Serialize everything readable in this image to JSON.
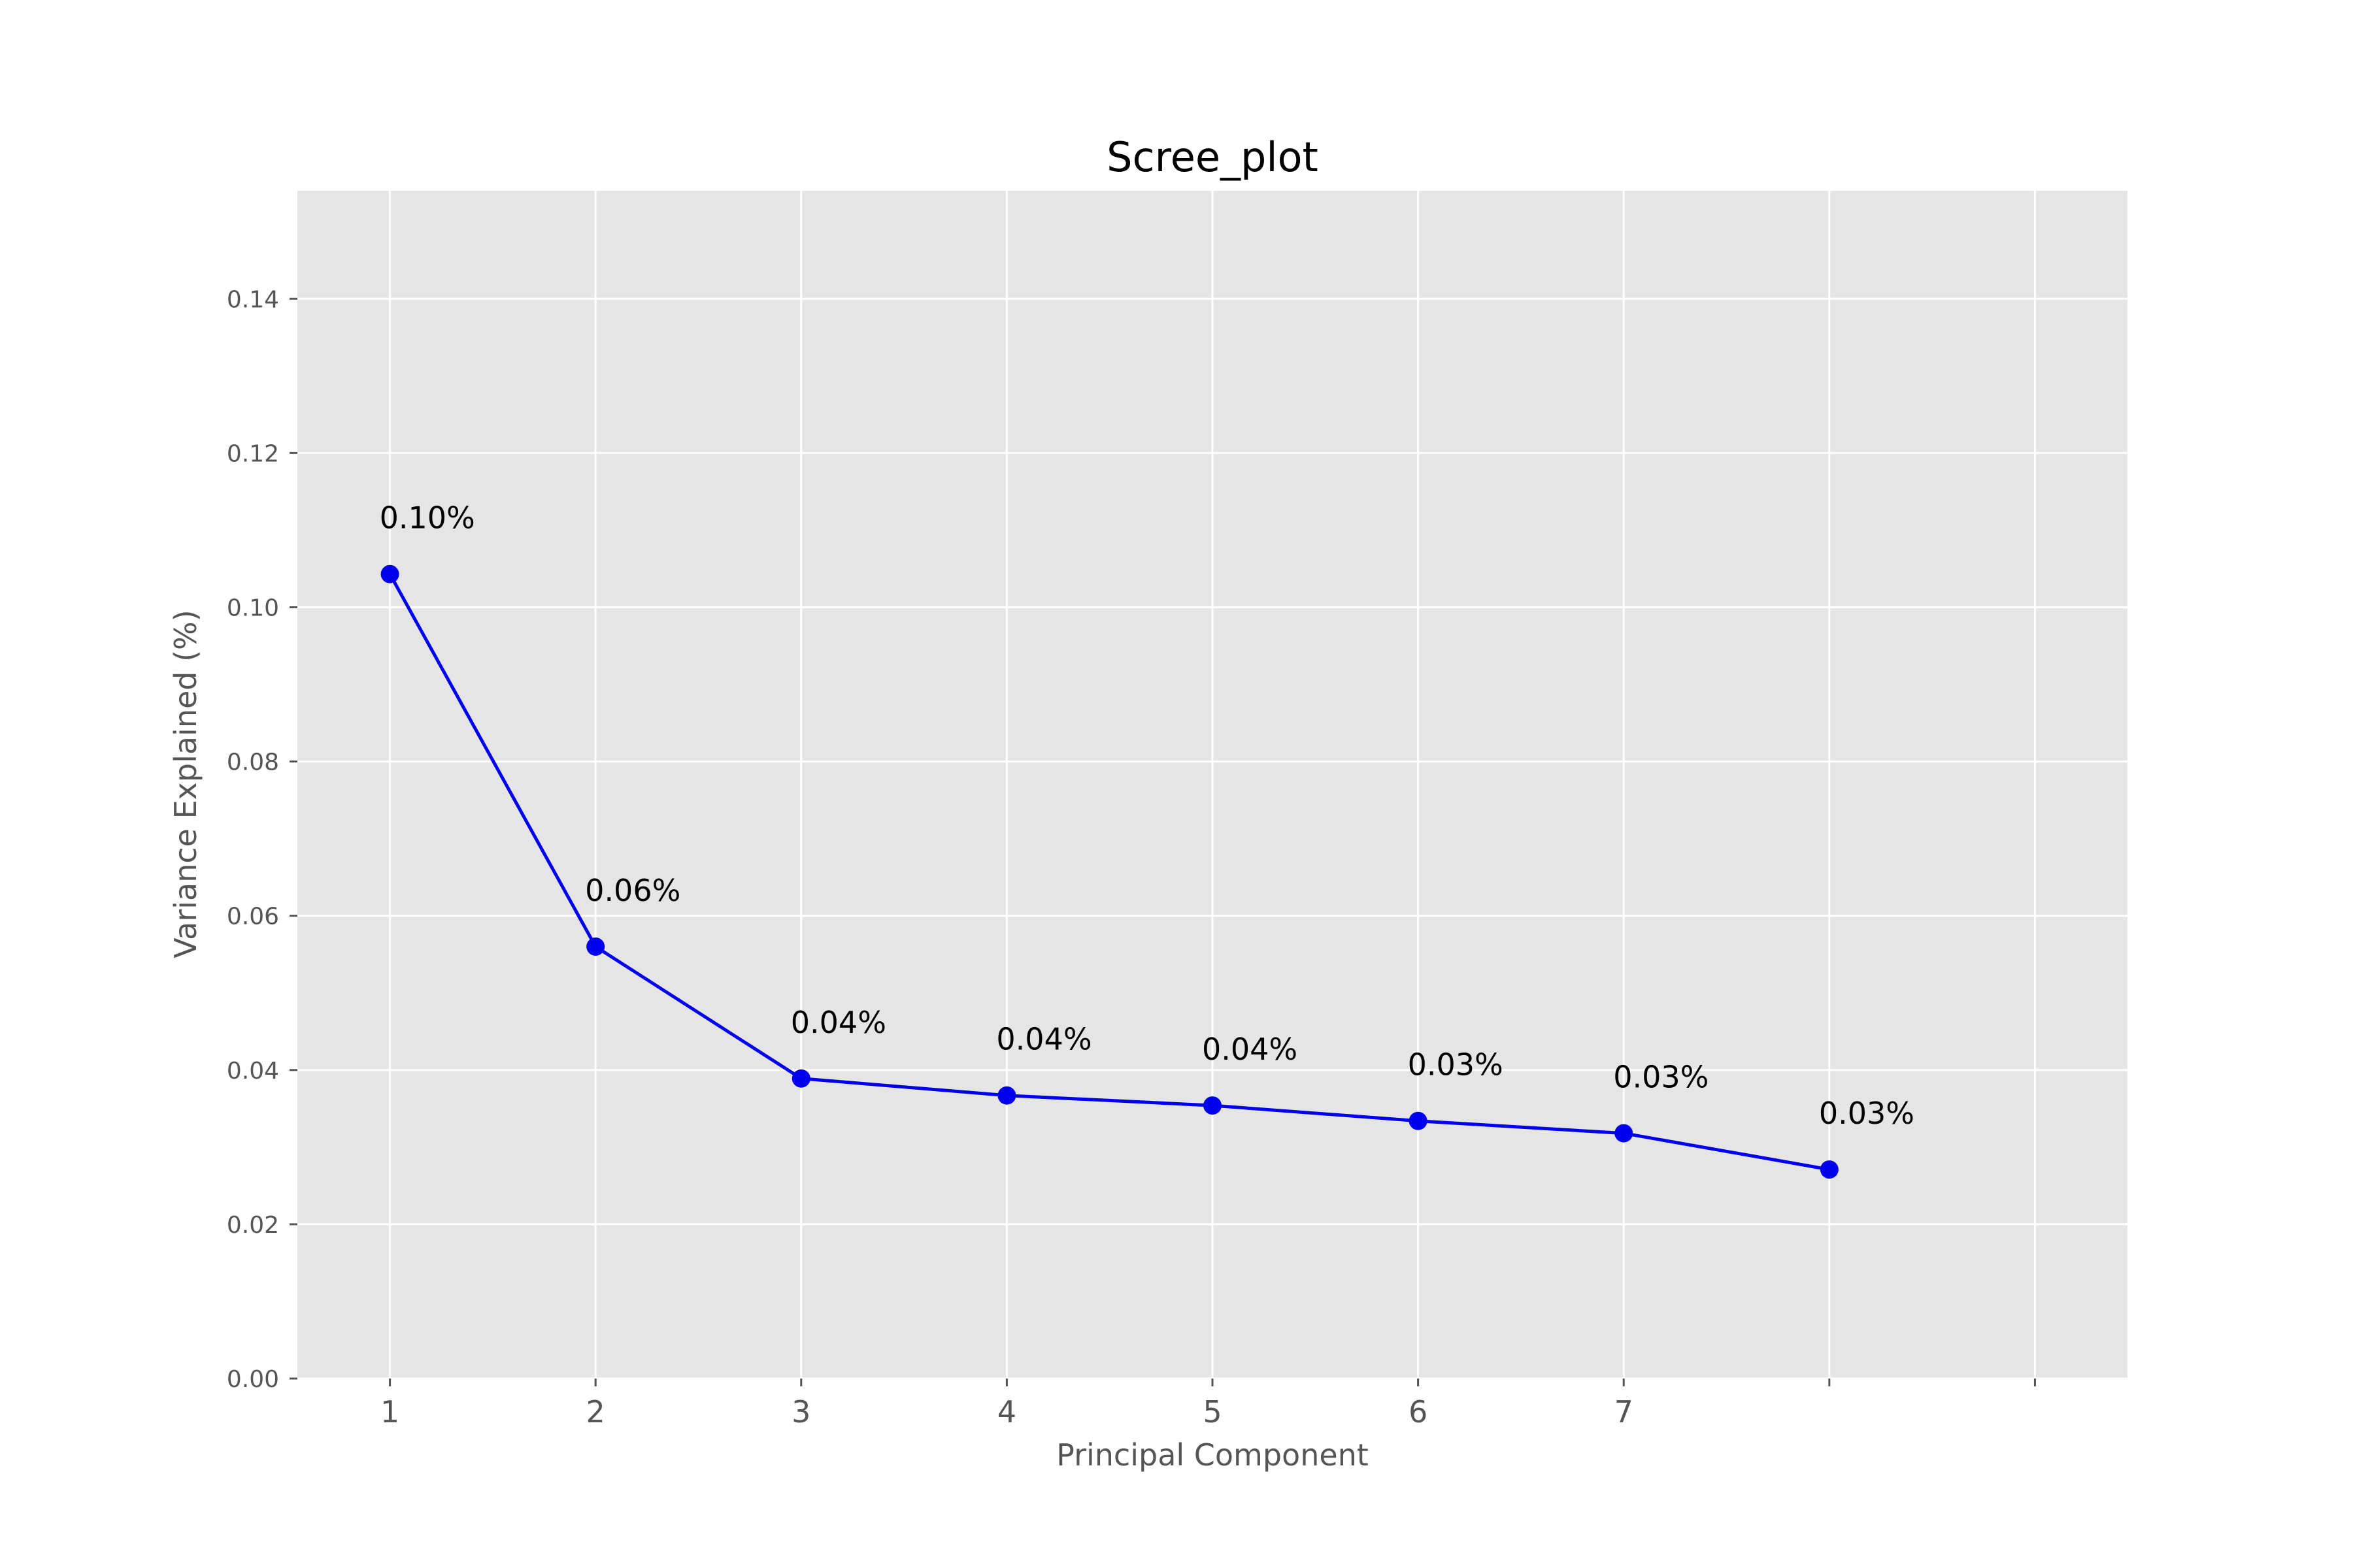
{
  "chart_data": {
    "type": "line",
    "title": "Scree_plot",
    "xlabel": "Principal Component",
    "ylabel": "Variance Explained (%)",
    "x": [
      1,
      2,
      3,
      4,
      5,
      6,
      7,
      8
    ],
    "x_tick_positions": [
      1,
      2,
      3,
      4,
      5,
      6,
      7,
      8,
      9
    ],
    "x_tick_labels": [
      "1",
      "2",
      "3",
      "4",
      "5",
      "6",
      "7",
      "",
      ""
    ],
    "xlim": [
      0.55,
      9.45
    ],
    "y_ticks": [
      0.0,
      0.02,
      0.04,
      0.06,
      0.08,
      0.1,
      0.12,
      0.14
    ],
    "y_tick_labels": [
      "0.00",
      "0.02",
      "0.04",
      "0.06",
      "0.08",
      "0.10",
      "0.12",
      "0.14"
    ],
    "ylim": [
      0,
      0.154
    ],
    "grid": true,
    "series": [
      {
        "values": [
          0.1043,
          0.056,
          0.0389,
          0.0367,
          0.0354,
          0.0334,
          0.0318,
          0.0271
        ],
        "data_labels": [
          "0.10%",
          "0.06%",
          "0.04%",
          "0.04%",
          "0.04%",
          "0.03%",
          "0.03%",
          "0.03%"
        ],
        "color": "#0000ee"
      }
    ],
    "colors": {
      "plot_background": "#e5e5e5",
      "grid": "#ffffff",
      "tick_text": "#555555"
    }
  }
}
